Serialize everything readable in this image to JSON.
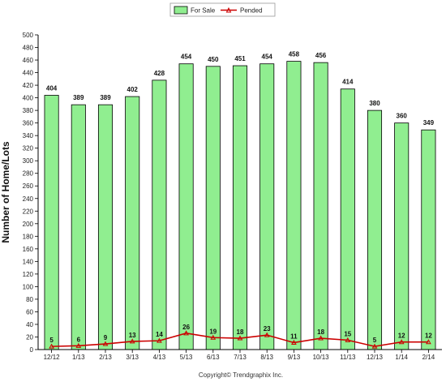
{
  "chart_data": {
    "type": "bar",
    "categories": [
      "12/12",
      "1/13",
      "2/13",
      "3/13",
      "4/13",
      "5/13",
      "6/13",
      "7/13",
      "8/13",
      "9/13",
      "10/13",
      "11/13",
      "12/13",
      "1/14",
      "2/14"
    ],
    "series": [
      {
        "name": "For Sale",
        "kind": "bar",
        "color": "#90EE90",
        "stroke": "#000000",
        "values": [
          404,
          389,
          389,
          402,
          428,
          454,
          450,
          451,
          454,
          458,
          456,
          414,
          380,
          360,
          349
        ]
      },
      {
        "name": "Pended",
        "kind": "line",
        "color": "#CC0000",
        "values": [
          5,
          6,
          9,
          13,
          14,
          26,
          19,
          18,
          23,
          11,
          18,
          15,
          5,
          12,
          12
        ]
      }
    ],
    "ylabel": "Number of Home/Lots",
    "xlabel": "",
    "ylim": [
      0,
      500
    ],
    "ytick_step": 20,
    "grid": false,
    "legend_position": "top-center",
    "credit": "Copyright© Trendgraphix Inc."
  }
}
